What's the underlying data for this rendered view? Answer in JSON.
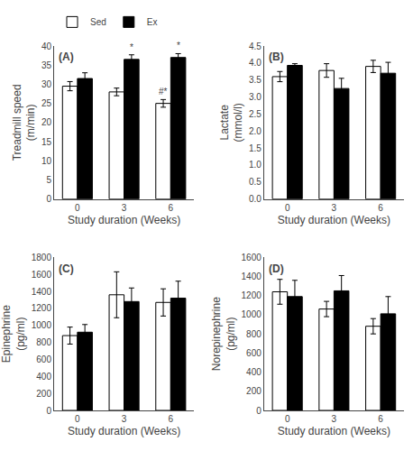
{
  "chart_data": [
    {
      "type": "bar",
      "title": "(A)",
      "xlabel": "Study duration (Weeks)",
      "ylabel": "Treadmill speed\n(m/min)",
      "categories": [
        "0",
        "3",
        "6"
      ],
      "series": [
        {
          "name": "Sed",
          "color": "white",
          "values": [
            29.5,
            28.0,
            25.0
          ],
          "errors": [
            1.2,
            1.0,
            1.0
          ]
        },
        {
          "name": "Ex",
          "color": "black",
          "values": [
            31.5,
            36.5,
            37.0
          ],
          "errors": [
            1.5,
            1.2,
            1.0
          ]
        }
      ],
      "ylim": [
        0,
        40
      ],
      "yticks": [
        0,
        5,
        10,
        15,
        20,
        25,
        30,
        35,
        40
      ],
      "grid": false,
      "legend": "upper left",
      "annotations": [
        {
          "text": "*",
          "x": "3",
          "series": "Ex"
        },
        {
          "text": "*",
          "x": "6",
          "series": "Ex"
        },
        {
          "text": "#*",
          "x": "6",
          "series": "Sed"
        }
      ]
    },
    {
      "type": "bar",
      "title": "(B)",
      "xlabel": "Study duration (Weeks)",
      "ylabel": "Lactate\n(mmol/l)",
      "categories": [
        "0",
        "3",
        "6"
      ],
      "series": [
        {
          "name": "Sed",
          "color": "white",
          "values": [
            3.6,
            3.78,
            3.9
          ],
          "errors": [
            0.15,
            0.2,
            0.18
          ]
        },
        {
          "name": "Ex",
          "color": "black",
          "values": [
            3.93,
            3.25,
            3.7
          ],
          "errors": [
            0.05,
            0.3,
            0.32
          ]
        }
      ],
      "ylim": [
        0,
        4.5
      ],
      "yticks": [
        {
          "value": 0,
          "label": "0.0"
        },
        0.5,
        {
          "value": 1.0,
          "label": "1.0"
        },
        1.5,
        {
          "value": 2.0,
          "label": "2.0"
        },
        2.5,
        {
          "value": 3.0,
          "label": "3.0"
        },
        3.5,
        {
          "value": 4.0,
          "label": "4.0"
        },
        4.5
      ],
      "grid": false
    },
    {
      "type": "bar",
      "title": "(C)",
      "xlabel": "Study duration (Weeks)",
      "ylabel": "Epinephrine\n(pg/ml)",
      "categories": [
        "0",
        "3",
        "6"
      ],
      "series": [
        {
          "name": "Sed",
          "color": "white",
          "values": [
            880,
            1360,
            1270
          ],
          "errors": [
            100,
            270,
            160
          ]
        },
        {
          "name": "Ex",
          "color": "black",
          "values": [
            920,
            1280,
            1320
          ],
          "errors": [
            90,
            160,
            200
          ]
        }
      ],
      "ylim": [
        0,
        1800
      ],
      "yticks": [
        0,
        200,
        400,
        600,
        800,
        1000,
        1200,
        1400,
        1600,
        1800
      ],
      "grid": false
    },
    {
      "type": "bar",
      "title": "(D)",
      "xlabel": "Study duration (Weeks)",
      "ylabel": "Norepinephrine\n(pg/ml)",
      "categories": [
        "0",
        "3",
        "6"
      ],
      "series": [
        {
          "name": "Sed",
          "color": "white",
          "values": [
            1240,
            1060,
            880
          ],
          "errors": [
            130,
            80,
            80
          ]
        },
        {
          "name": "Ex",
          "color": "black",
          "values": [
            1190,
            1250,
            1010
          ],
          "errors": [
            170,
            160,
            180
          ]
        }
      ],
      "ylim": [
        0,
        1600
      ],
      "yticks": [
        0,
        200,
        400,
        600,
        800,
        1000,
        1200,
        1400,
        1600
      ],
      "grid": false
    }
  ]
}
